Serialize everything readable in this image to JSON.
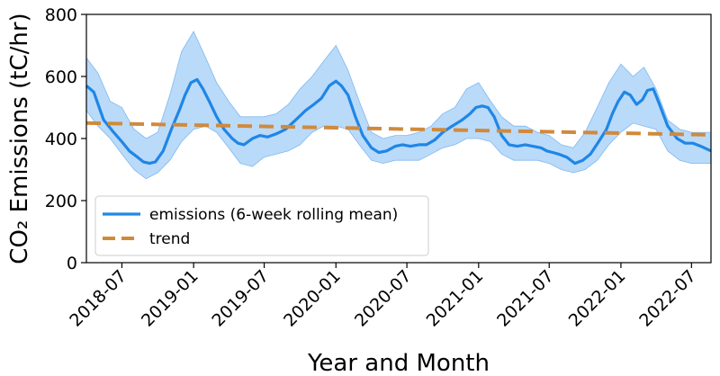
{
  "chart_data": {
    "type": "line",
    "xlabel": "Year and Month",
    "ylabel": "CO₂ Emissions (tC/hr)",
    "xlim": [
      "2018-04-01",
      "2022-08-20"
    ],
    "ylim": [
      0,
      800
    ],
    "x_ticks": [
      "2018-07",
      "2019-01",
      "2019-07",
      "2020-01",
      "2020-07",
      "2021-01",
      "2021-07",
      "2022-01",
      "2022-07"
    ],
    "y_ticks": [
      0,
      200,
      400,
      600,
      800
    ],
    "legend": {
      "position": "lower-left",
      "entries": [
        "emissions (6-week rolling mean)",
        "trend"
      ]
    },
    "colors": {
      "emissions": "#1f86e6",
      "band": "#a9d1f7",
      "band_edge": "#7fb8ef",
      "trend": "#d08a3c"
    },
    "series": [
      {
        "name": "emissions (6-week rolling mean)",
        "style": "solid",
        "x": [
          "2018-04-01",
          "2018-04-20",
          "2018-05-15",
          "2018-06-10",
          "2018-07-01",
          "2018-07-20",
          "2018-08-10",
          "2018-08-25",
          "2018-09-10",
          "2018-09-25",
          "2018-10-15",
          "2018-11-05",
          "2018-11-25",
          "2018-12-10",
          "2018-12-25",
          "2019-01-10",
          "2019-01-25",
          "2019-02-10",
          "2019-03-01",
          "2019-03-20",
          "2019-04-10",
          "2019-04-25",
          "2019-05-10",
          "2019-06-01",
          "2019-06-20",
          "2019-07-10",
          "2019-08-01",
          "2019-08-25",
          "2019-09-20",
          "2019-10-15",
          "2019-11-05",
          "2019-11-25",
          "2019-12-15",
          "2020-01-01",
          "2020-01-15",
          "2020-02-01",
          "2020-02-20",
          "2020-03-10",
          "2020-04-01",
          "2020-04-20",
          "2020-05-10",
          "2020-06-01",
          "2020-06-20",
          "2020-07-10",
          "2020-08-01",
          "2020-08-20",
          "2020-09-10",
          "2020-10-01",
          "2020-10-25",
          "2020-11-20",
          "2020-12-10",
          "2020-12-25",
          "2021-01-10",
          "2021-01-25",
          "2021-02-10",
          "2021-03-01",
          "2021-03-20",
          "2021-04-10",
          "2021-05-01",
          "2021-05-20",
          "2021-06-10",
          "2021-06-25",
          "2021-07-10",
          "2021-07-25",
          "2021-08-15",
          "2021-09-05",
          "2021-09-25",
          "2021-10-15",
          "2021-11-05",
          "2021-11-25",
          "2021-12-10",
          "2021-12-25",
          "2022-01-10",
          "2022-01-25",
          "2022-02-10",
          "2022-02-25",
          "2022-03-10",
          "2022-03-25",
          "2022-04-10",
          "2022-05-01",
          "2022-05-25",
          "2022-06-15",
          "2022-07-05",
          "2022-07-25",
          "2022-08-20"
        ],
        "y": [
          570,
          550,
          460,
          420,
          390,
          360,
          340,
          325,
          320,
          325,
          360,
          430,
          490,
          540,
          580,
          590,
          560,
          520,
          470,
          430,
          400,
          385,
          380,
          400,
          410,
          405,
          415,
          430,
          460,
          490,
          510,
          530,
          570,
          585,
          570,
          540,
          470,
          410,
          370,
          355,
          360,
          375,
          380,
          375,
          380,
          380,
          395,
          420,
          440,
          460,
          480,
          500,
          505,
          500,
          470,
          410,
          380,
          375,
          380,
          375,
          370,
          360,
          355,
          350,
          340,
          320,
          330,
          350,
          390,
          430,
          480,
          520,
          550,
          540,
          510,
          525,
          555,
          560,
          510,
          440,
          400,
          385,
          385,
          375,
          360
        ]
      },
      {
        "name": "trend",
        "style": "dashed",
        "x": [
          "2018-04-01",
          "2022-08-20"
        ],
        "y": [
          450,
          412
        ]
      }
    ],
    "band": {
      "x": [
        "2018-04-01",
        "2018-05-01",
        "2018-06-01",
        "2018-07-01",
        "2018-08-01",
        "2018-09-01",
        "2018-10-01",
        "2018-11-01",
        "2018-12-01",
        "2019-01-01",
        "2019-02-01",
        "2019-03-01",
        "2019-04-01",
        "2019-05-01",
        "2019-06-01",
        "2019-07-01",
        "2019-08-01",
        "2019-09-01",
        "2019-10-01",
        "2019-11-01",
        "2019-12-01",
        "2020-01-01",
        "2020-02-01",
        "2020-03-01",
        "2020-04-01",
        "2020-05-01",
        "2020-06-01",
        "2020-07-01",
        "2020-08-01",
        "2020-09-01",
        "2020-10-01",
        "2020-11-01",
        "2020-12-01",
        "2021-01-01",
        "2021-02-01",
        "2021-03-01",
        "2021-04-01",
        "2021-05-01",
        "2021-06-01",
        "2021-07-01",
        "2021-08-01",
        "2021-09-01",
        "2021-10-01",
        "2021-11-01",
        "2021-12-01",
        "2022-01-01",
        "2022-02-01",
        "2022-03-01",
        "2022-04-01",
        "2022-05-01",
        "2022-06-01",
        "2022-07-01",
        "2022-08-20"
      ],
      "upper": [
        660,
        610,
        520,
        500,
        430,
        400,
        420,
        540,
        680,
        745,
        660,
        580,
        520,
        470,
        470,
        470,
        480,
        510,
        560,
        600,
        650,
        700,
        620,
        520,
        420,
        400,
        410,
        410,
        420,
        440,
        480,
        500,
        560,
        580,
        520,
        470,
        440,
        440,
        420,
        410,
        380,
        370,
        420,
        500,
        580,
        640,
        600,
        630,
        560,
        460,
        430,
        420,
        420
      ],
      "lower": [
        490,
        440,
        400,
        350,
        300,
        270,
        290,
        330,
        390,
        430,
        440,
        420,
        370,
        320,
        310,
        340,
        350,
        360,
        380,
        420,
        440,
        440,
        430,
        380,
        330,
        320,
        330,
        330,
        330,
        350,
        370,
        380,
        400,
        400,
        390,
        350,
        330,
        330,
        330,
        320,
        300,
        290,
        300,
        330,
        380,
        420,
        450,
        440,
        430,
        360,
        330,
        320,
        320
      ]
    }
  }
}
